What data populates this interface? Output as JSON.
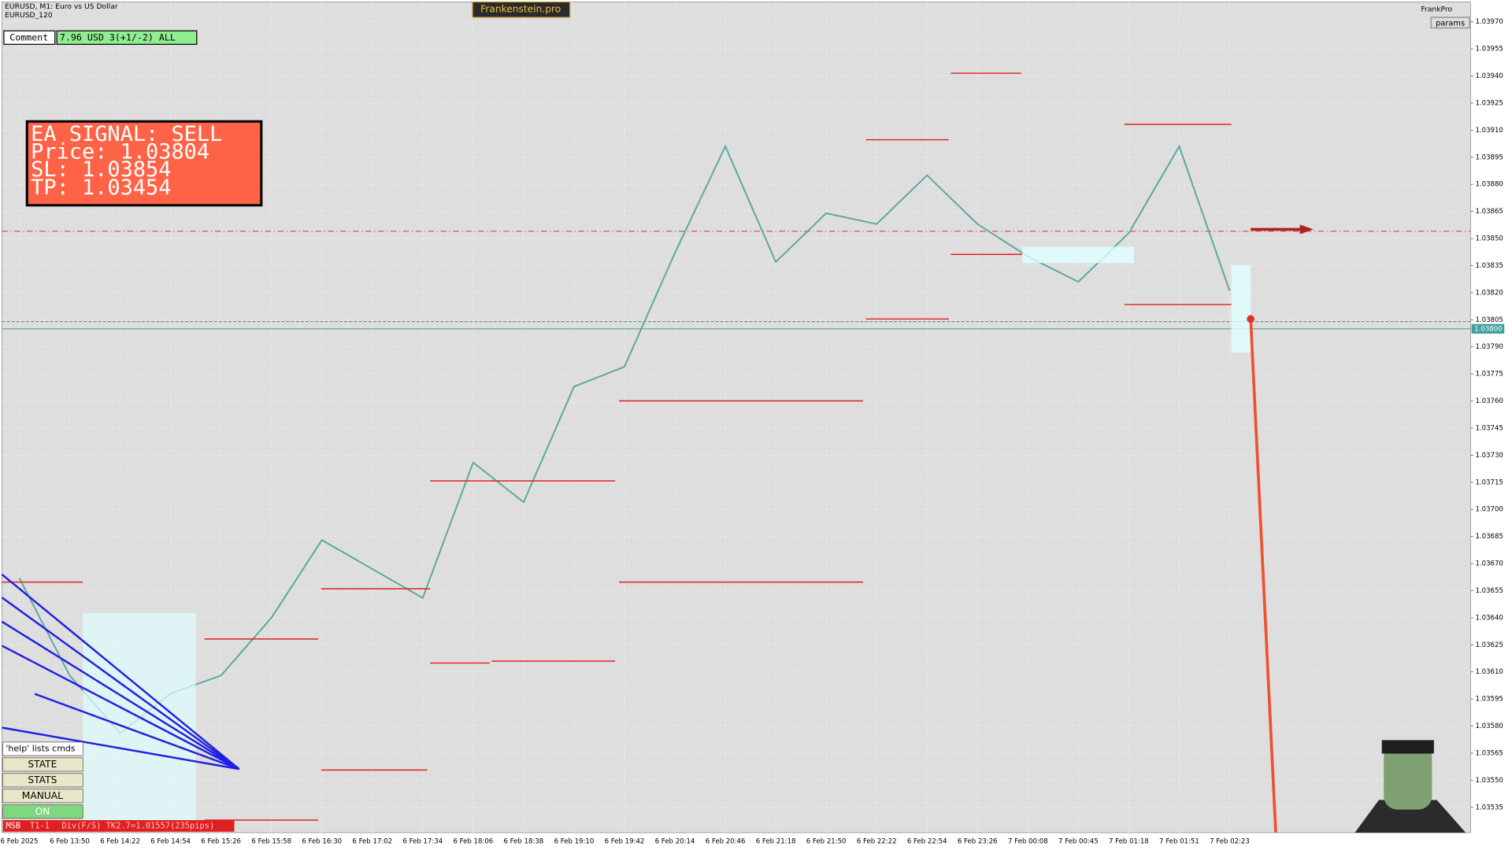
{
  "header": {
    "symbol": "EURUSD, M1:  Euro vs US Dollar",
    "subtitle": "EURUSD_120",
    "brand": "Frankenstein.pro",
    "account": "FrankPro",
    "params": "params"
  },
  "comment": {
    "label": "Comment",
    "value": "7.96 USD 3(+1/-2) ALL"
  },
  "signal": {
    "lines": [
      "EA SIGNAL: SELL",
      "Price: 1.03804",
      "SL:     1.03854",
      "TP:     1.03454"
    ]
  },
  "buttons": [
    "'help' lists cmds",
    "STATE",
    "STATS",
    "MANUAL",
    "ON"
  ],
  "status": {
    "items": [
      "MSB",
      "T1-1",
      "Div(F/S) TK2.7=1.01557(235pips)"
    ]
  },
  "chart_data": {
    "type": "line",
    "color": "#5aa89e",
    "grid": true,
    "categories": [
      "6 Feb 2025",
      "6 Feb 13:50",
      "6 Feb 14:22",
      "6 Feb 14:54",
      "6 Feb 15:26",
      "6 Feb 15:58",
      "6 Feb 16:30",
      "6 Feb 17:02",
      "6 Feb 17:34",
      "6 Feb 18:06",
      "6 Feb 18:38",
      "6 Feb 19:10",
      "6 Feb 19:42",
      "6 Feb 20:14",
      "6 Feb 20:46",
      "6 Feb 21:18",
      "6 Feb 21:50",
      "6 Feb 22:22",
      "6 Feb 22:54",
      "6 Feb 23:26",
      "7 Feb 00:08",
      "7 Feb 00:45",
      "7 Feb 01:18",
      "7 Feb 01:51",
      "7 Feb 02:23"
    ],
    "values": [
      1.03662,
      1.03608,
      1.03576,
      1.03598,
      1.03608,
      1.0364,
      1.03683,
      1.03667,
      1.03651,
      1.03726,
      1.03704,
      1.03768,
      1.03779,
      1.03842,
      1.03901,
      1.03837,
      1.03864,
      1.03858,
      1.03885,
      1.03858,
      1.0384,
      1.03826,
      1.03853,
      1.03901,
      1.03821
    ],
    "ylim": [
      1.03521,
      1.03981
    ],
    "yticks": [
      1.03535,
      {
        "value": 1.0355,
        "label": "1.03550"
      },
      1.03565,
      {
        "value": 1.0358,
        "label": "1.03580"
      },
      1.03595,
      {
        "value": 1.0361,
        "label": "1.03610"
      },
      1.03625,
      {
        "value": 1.0364,
        "label": "1.03640"
      },
      1.03655,
      {
        "value": 1.0367,
        "label": "1.03670"
      },
      1.03685,
      {
        "value": 1.037,
        "label": "1.03700"
      },
      1.03715,
      {
        "value": 1.0373,
        "label": "1.03730"
      },
      1.03745,
      {
        "value": 1.0376,
        "label": "1.03760"
      },
      1.03775,
      {
        "value": 1.0379,
        "label": "1.03790"
      },
      1.03805,
      {
        "value": 1.0382,
        "label": "1.03820"
      },
      1.03835,
      {
        "value": 1.0385,
        "label": "1.03850"
      },
      1.03865,
      {
        "value": 1.0388,
        "label": "1.03880"
      },
      1.03895,
      {
        "value": 1.0391,
        "label": "1.03910"
      },
      1.03925,
      {
        "value": 1.0394,
        "label": "1.03940"
      },
      1.03955,
      {
        "value": 1.0397,
        "label": "1.03970"
      }
    ],
    "current_price": {
      "value": 1.038,
      "label": "1.03800"
    },
    "levels": [
      {
        "value": 1.03854,
        "color": "#e03030",
        "style": "dashdot"
      },
      {
        "value": 1.03804,
        "color": "#3a8a5a",
        "style": "dashed"
      }
    ]
  }
}
